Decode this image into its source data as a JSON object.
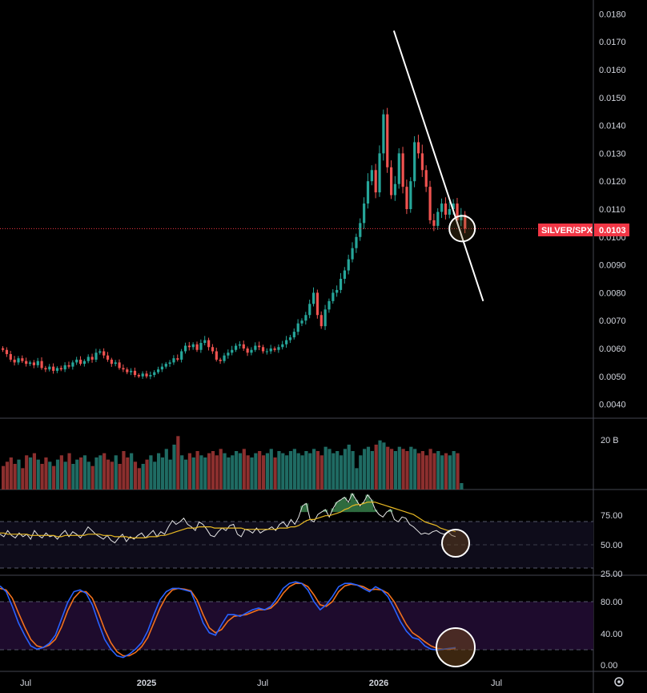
{
  "chart_data": {
    "type": "candlestick",
    "symbol": "SILVER/SPX",
    "last_value": "0.0103",
    "x_ticks": [
      "Jul",
      "2025",
      "Jul",
      "2026",
      "Jul"
    ],
    "x_tick_bold": [
      false,
      true,
      false,
      true,
      false
    ],
    "price_axis": {
      "ticks": [
        "0.0180",
        "0.0170",
        "0.0160",
        "0.0150",
        "0.0140",
        "0.0130",
        "0.0120",
        "0.0110",
        "0.0100",
        "0.0090",
        "0.0080",
        "0.0070",
        "0.0060",
        "0.0050",
        "0.0040"
      ],
      "ylim": [
        0.0035,
        0.0185
      ]
    },
    "price_close": [
      0.00595,
      0.0058,
      0.0056,
      0.0055,
      0.00565,
      0.00555,
      0.00545,
      0.0055,
      0.0054,
      0.00555,
      0.0053,
      0.00525,
      0.00535,
      0.0052,
      0.0053,
      0.00525,
      0.0054,
      0.00535,
      0.0055,
      0.0056,
      0.00545,
      0.00555,
      0.0057,
      0.0056,
      0.00585,
      0.0059,
      0.00575,
      0.0056,
      0.00545,
      0.0055,
      0.0053,
      0.00525,
      0.00515,
      0.0052,
      0.00505,
      0.005,
      0.0051,
      0.005,
      0.00505,
      0.00515,
      0.00525,
      0.00535,
      0.00545,
      0.0055,
      0.00565,
      0.0056,
      0.0059,
      0.0061,
      0.00605,
      0.00615,
      0.00595,
      0.0062,
      0.0063,
      0.00605,
      0.0059,
      0.0056,
      0.00555,
      0.00575,
      0.00585,
      0.00595,
      0.0061,
      0.00615,
      0.006,
      0.00585,
      0.00595,
      0.0061,
      0.00605,
      0.0059,
      0.0059,
      0.006,
      0.00595,
      0.00605,
      0.00615,
      0.0063,
      0.0064,
      0.0066,
      0.0069,
      0.007,
      0.0072,
      0.0076,
      0.008,
      0.0072,
      0.0068,
      0.0074,
      0.0077,
      0.008,
      0.0081,
      0.0085,
      0.0088,
      0.0092,
      0.0096,
      0.01,
      0.0105,
      0.0112,
      0.012,
      0.0124,
      0.0116,
      0.013,
      0.0144,
      0.0125,
      0.0115,
      0.0119,
      0.013,
      0.0118,
      0.011,
      0.012,
      0.0134,
      0.013,
      0.0124,
      0.0118,
      0.0106,
      0.0104,
      0.0109,
      0.0112,
      0.0108,
      0.011,
      0.0112,
      0.0106,
      0.0108,
      0.0103
    ],
    "volume_axis": {
      "ticks": [
        "20 B"
      ]
    },
    "volume": [
      1.1,
      1.3,
      1.5,
      1.2,
      1.4,
      1.0,
      1.6,
      1.5,
      1.7,
      1.4,
      1.2,
      1.5,
      1.3,
      1.1,
      1.4,
      1.6,
      1.3,
      1.7,
      1.2,
      1.4,
      1.5,
      1.6,
      1.3,
      1.1,
      1.5,
      1.6,
      1.7,
      1.4,
      1.3,
      1.6,
      1.2,
      1.8,
      1.5,
      1.7,
      1.3,
      1.0,
      1.2,
      1.4,
      1.6,
      1.3,
      1.7,
      1.5,
      1.9,
      1.4,
      2.1,
      2.5,
      1.6,
      1.4,
      1.7,
      1.5,
      1.8,
      1.6,
      1.5,
      1.7,
      1.8,
      1.6,
      1.9,
      1.7,
      1.5,
      1.6,
      1.8,
      1.7,
      1.9,
      1.6,
      1.5,
      1.7,
      1.8,
      1.6,
      1.7,
      1.9,
      1.5,
      1.8,
      1.7,
      1.6,
      1.8,
      1.9,
      1.7,
      1.6,
      1.8,
      1.7,
      1.9,
      1.8,
      1.6,
      2.0,
      1.9,
      1.7,
      1.8,
      1.6,
      1.9,
      2.1,
      1.8,
      1.0,
      1.6,
      1.9,
      2.0,
      1.8,
      2.1,
      2.3,
      2.2,
      2.0,
      1.9,
      1.8,
      2.0,
      1.9,
      1.8,
      2.0,
      1.9,
      1.7,
      1.8,
      1.6,
      1.9,
      1.7,
      1.8,
      1.6,
      1.7,
      1.6,
      1.8,
      1.7,
      0.3
    ],
    "rsi": {
      "axis_ticks": [
        "75.00",
        "50.00",
        "25.00"
      ],
      "ylim": [
        20,
        87
      ],
      "bands": [
        70,
        50,
        30
      ],
      "rsi_values": [
        52,
        50,
        55,
        51,
        49,
        53,
        50,
        52,
        48,
        55,
        51,
        49,
        53,
        50,
        51,
        48,
        52,
        55,
        50,
        54,
        52,
        49,
        53,
        58,
        55,
        52,
        50,
        48,
        51,
        47,
        45,
        49,
        52,
        46,
        50,
        48,
        51,
        53,
        49,
        52,
        55,
        50,
        54,
        52,
        58,
        63,
        60,
        62,
        65,
        60,
        58,
        55,
        62,
        60,
        56,
        51,
        50,
        54,
        57,
        55,
        59,
        60,
        52,
        50,
        56,
        55,
        53,
        57,
        53,
        55,
        56,
        58,
        55,
        60,
        62,
        58,
        64,
        60,
        66,
        75,
        77,
        64,
        62,
        68,
        70,
        72,
        66,
        73,
        78,
        80,
        82,
        78,
        85,
        80,
        75,
        78,
        84,
        80,
        72,
        68,
        66,
        70,
        72,
        64,
        62,
        66,
        65,
        60,
        58,
        55,
        52,
        53,
        52,
        54,
        55,
        53,
        52,
        54,
        51,
        50
      ],
      "ma_values": [
        53,
        53,
        52,
        52,
        52,
        52,
        52,
        52,
        51,
        51,
        51,
        51,
        51,
        51,
        51,
        50,
        50,
        51,
        51,
        51,
        51,
        51,
        51,
        52,
        52,
        52,
        52,
        51,
        51,
        51,
        50,
        50,
        50,
        50,
        49,
        49,
        49,
        49,
        49,
        50,
        50,
        50,
        51,
        51,
        52,
        53,
        54,
        55,
        56,
        57,
        57,
        57,
        58,
        58,
        58,
        58,
        57,
        57,
        57,
        57,
        57,
        57,
        57,
        57,
        56,
        56,
        56,
        56,
        56,
        56,
        56,
        56,
        56,
        57,
        57,
        57,
        58,
        58,
        59,
        61,
        63,
        64,
        64,
        65,
        66,
        67,
        67,
        68,
        69,
        70,
        72,
        73,
        75,
        76,
        76,
        77,
        78,
        78,
        78,
        77,
        76,
        75,
        74,
        73,
        72,
        71,
        70,
        69,
        68,
        66,
        64,
        62,
        61,
        60,
        59,
        57,
        56,
        55,
        55,
        54
      ]
    },
    "stoch": {
      "axis_ticks": [
        "80.00",
        "40.00",
        "0.00"
      ],
      "ylim": [
        -8,
        106
      ],
      "bands": [
        80,
        20
      ],
      "k_values": [
        95,
        88,
        70,
        50,
        35,
        22,
        18,
        20,
        25,
        35,
        55,
        75,
        88,
        90,
        86,
        72,
        50,
        30,
        18,
        10,
        8,
        12,
        18,
        26,
        40,
        60,
        78,
        88,
        92,
        92,
        90,
        88,
        70,
        50,
        38,
        35,
        48,
        60,
        60,
        58,
        62,
        66,
        68,
        66,
        70,
        80,
        92,
        98,
        100,
        98,
        90,
        76,
        66,
        72,
        82,
        94,
        98,
        98,
        96,
        92,
        88,
        94,
        90,
        82,
        68,
        52,
        40,
        32,
        30,
        22,
        18,
        17,
        18,
        19,
        20
      ],
      "d_values": [
        92,
        90,
        80,
        62,
        45,
        30,
        22,
        20,
        23,
        30,
        45,
        65,
        80,
        88,
        88,
        80,
        62,
        42,
        26,
        15,
        10,
        10,
        14,
        21,
        32,
        50,
        68,
        82,
        90,
        92,
        91,
        89,
        78,
        60,
        44,
        38,
        42,
        52,
        58,
        59,
        60,
        63,
        66,
        66,
        68,
        75,
        86,
        94,
        98,
        98,
        94,
        84,
        72,
        70,
        76,
        88,
        95,
        97,
        96,
        94,
        90,
        91,
        90,
        86,
        76,
        62,
        48,
        38,
        33,
        27,
        22,
        19,
        18,
        18,
        19
      ]
    },
    "annotations": [
      {
        "type": "trendline",
        "from": {
          "date": "2026-01",
          "value": 0.0174
        },
        "to": {
          "date": "2026-05",
          "value": 0.0077
        }
      },
      {
        "type": "circle",
        "pane": "price",
        "near": "last candle"
      },
      {
        "type": "circle",
        "pane": "rsi",
        "near": "last value"
      },
      {
        "type": "circle",
        "pane": "stoch",
        "near": "last value"
      }
    ],
    "colors": {
      "up": "#26a69a",
      "down": "#ef5350",
      "volume_up": "#1f6b63",
      "volume_down": "#8c2f2e",
      "rsi_line": "#e6e6e6",
      "rsi_ma": "#e8b923",
      "stoch_k": "#2962ff",
      "stoch_d": "#f2711c",
      "last_price_badge": "#f23645",
      "grid": "#2a2e39",
      "background": "#000000"
    }
  }
}
